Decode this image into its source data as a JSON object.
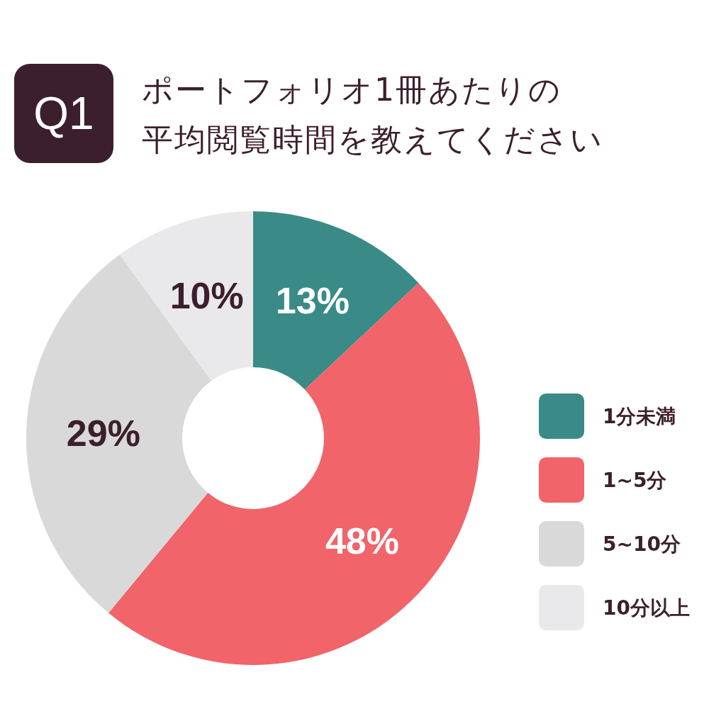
{
  "chart_data": {
    "type": "donut",
    "title": "ポートフォリオ1冊あたりの",
    "subtitle": "平均閲覧時間を教えてください",
    "annotations": [
      "Q1"
    ],
    "categories": [
      "1分未満",
      "1~5分",
      "5~10分",
      "10分以上"
    ],
    "values": [
      13,
      48,
      29,
      10
    ],
    "colors": [
      "#3a8b87",
      "#f0646a",
      "#d9d9d9",
      "#e9e9eb"
    ],
    "value_labels": [
      "13%",
      "48%",
      "29%",
      "10%"
    ],
    "legend": "right"
  }
}
